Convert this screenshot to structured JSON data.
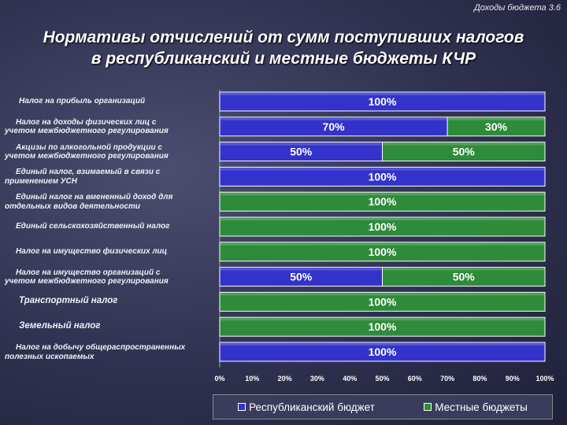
{
  "corner_text": "Доходы бюджета 3.6",
  "title_line1": "Нормативы отчислений от сумм поступивших налогов",
  "title_line2": "в республиканский и местные бюджеты КЧР",
  "colors": {
    "republic": "#3333cc",
    "local": "#2e8b3a"
  },
  "chart_data": {
    "type": "bar",
    "orientation": "horizontal-stacked",
    "categories": [
      "Налог на прибыль организаций",
      "Налог на доходы физических лиц с учетом межбюджетного регулирования",
      "Акцизы по алкогольной продукции с учетом межбюджетного регулирования",
      "Единый налог, взимаемый в связи с применением УСН",
      "Единый налог на вмененный доход для отдельных видов деятельности",
      "Единый сельскохозяйственный налог",
      "Налог на имущество физических лиц",
      "Налог на имущество организаций с учетом межбюджетного регулирования",
      "Транспортный налог",
      "Земельный налог",
      "Налог на добычу общераспространенных полезных ископаемых"
    ],
    "category_lines": [
      [
        "Налог на прибыль организаций"
      ],
      [
        "Налог на доходы физических лиц с",
        "учетом межбюджетного регулирования"
      ],
      [
        "Акцизы по алкогольной продукции с",
        "учетом межбюджетного регулирования"
      ],
      [
        "Единый налог, взимаемый в связи с",
        "применением УСН"
      ],
      [
        "Единый налог на вмененный доход для",
        "отдельных видов деятельности"
      ],
      [
        "Единый сельскохозяйственный налог"
      ],
      [
        "Налог на имущество физических лиц"
      ],
      [
        "Налог на имущество организаций с",
        "учетом межбюджетного регулирования"
      ],
      [
        "Транспортный налог"
      ],
      [
        "Земельный налог"
      ],
      [
        "Налог на добычу общераспространенных",
        "полезных ископаемых"
      ]
    ],
    "series": [
      {
        "name": "Республиканский бюджет",
        "values": [
          100,
          70,
          50,
          100,
          0,
          0,
          0,
          50,
          0,
          0,
          100
        ]
      },
      {
        "name": "Местные бюджеты",
        "values": [
          0,
          30,
          50,
          0,
          100,
          100,
          100,
          50,
          100,
          100,
          0
        ]
      }
    ],
    "xlim": [
      0,
      100
    ],
    "xticks": [
      "0%",
      "10%",
      "20%",
      "30%",
      "40%",
      "50%",
      "60%",
      "70%",
      "80%",
      "90%",
      "100%"
    ],
    "legend_position": "bottom"
  }
}
